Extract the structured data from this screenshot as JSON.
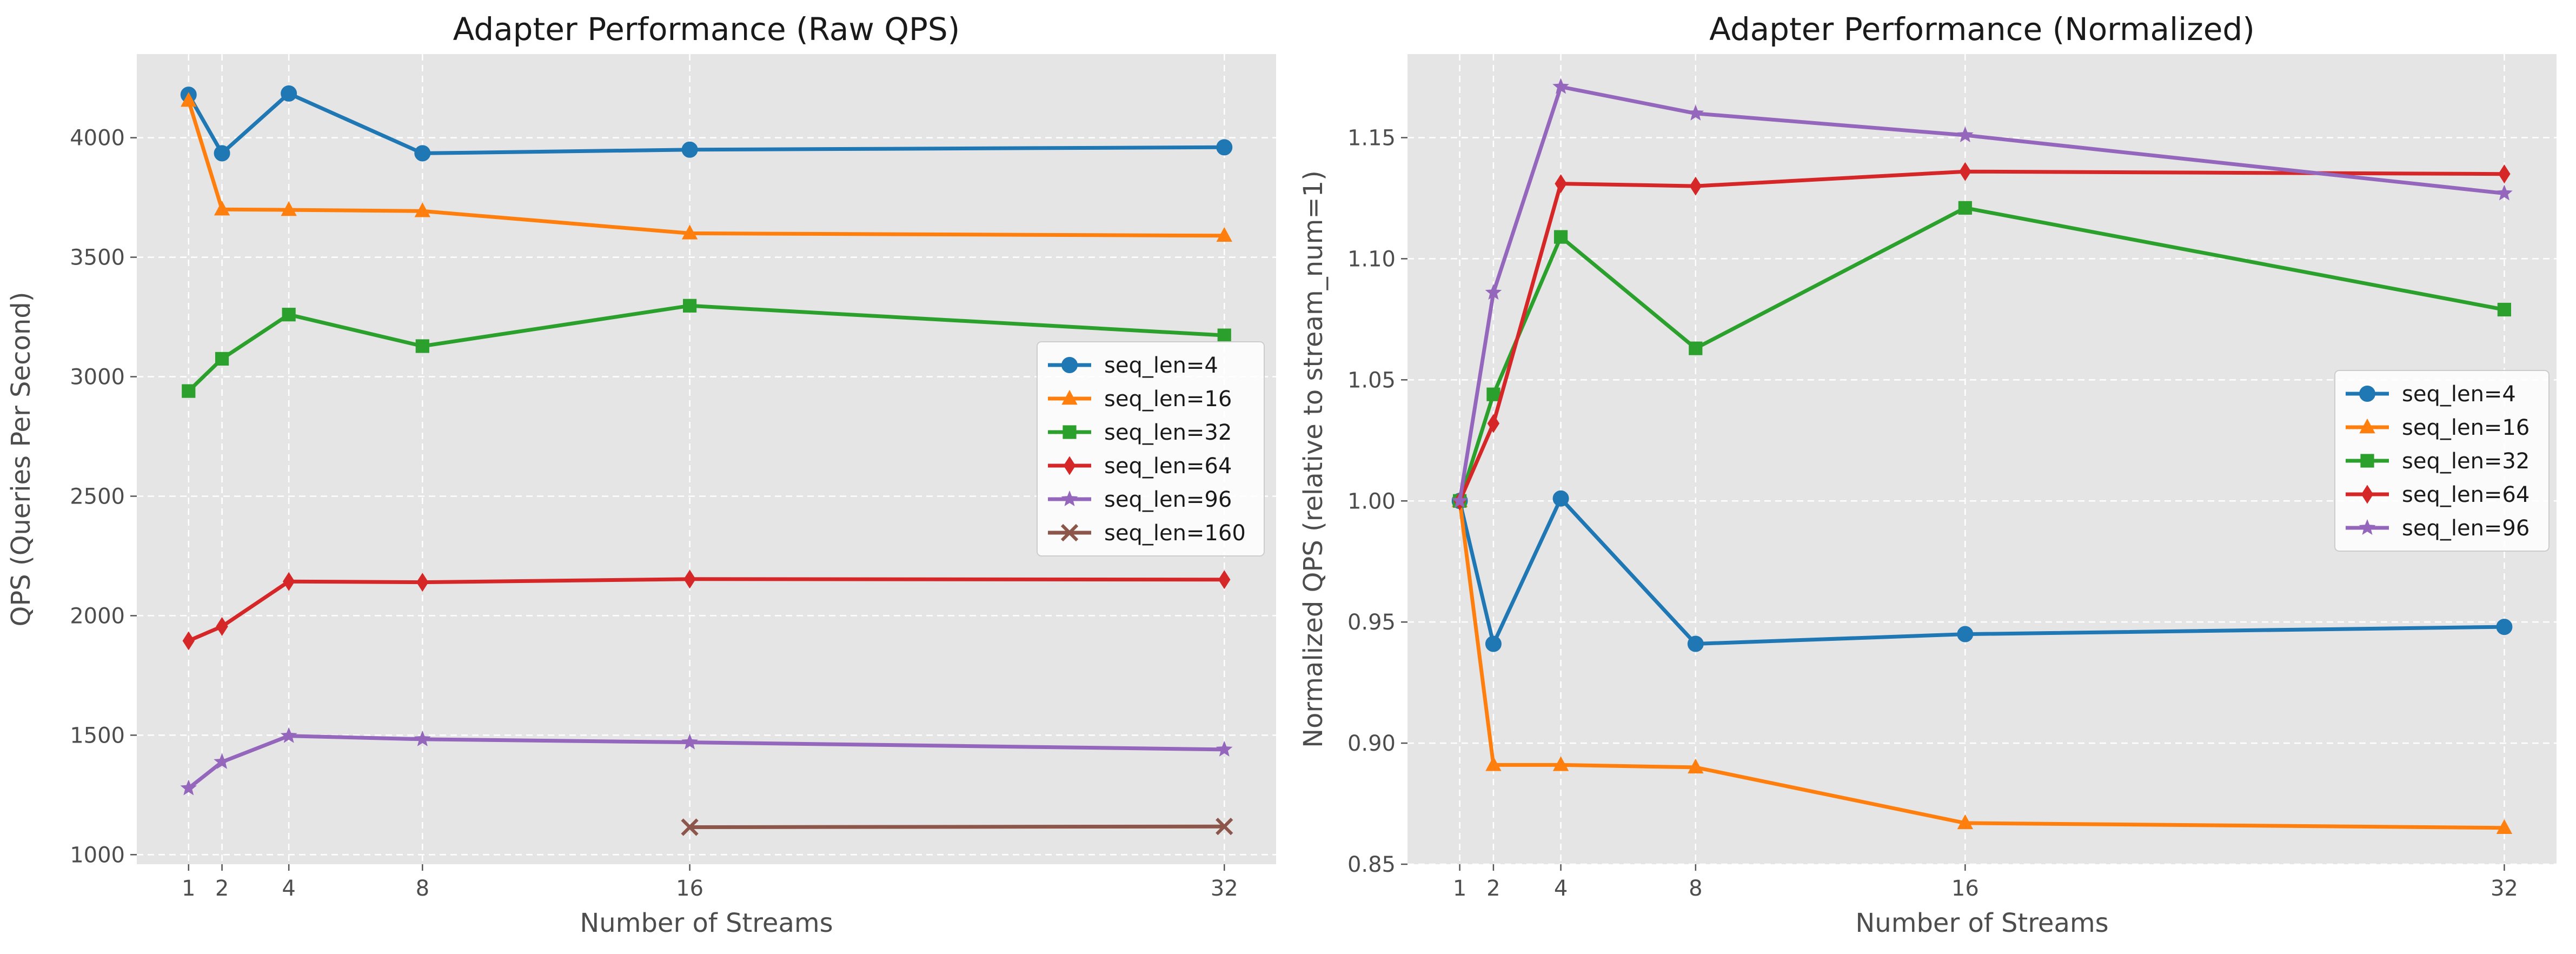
{
  "chart_data": [
    {
      "type": "line",
      "title": "Adapter Performance (Raw QPS)",
      "xlabel": "Number of Streams",
      "ylabel": "QPS (Queries Per Second)",
      "xticks": [
        1,
        2,
        4,
        8,
        16,
        32
      ],
      "yticks": [
        1000,
        1500,
        2000,
        2500,
        3000,
        3500,
        4000
      ],
      "xlim": [
        -0.55,
        33.55
      ],
      "ylim": [
        960,
        4350
      ],
      "grid": true,
      "legend_position": "center-right",
      "series": [
        {
          "name": "seq_len=4",
          "color": "#1f77b4",
          "marker": "circle",
          "x": [
            1,
            2,
            4,
            8,
            16,
            32
          ],
          "y": [
            4180,
            3935,
            4185,
            3935,
            3950,
            3960
          ]
        },
        {
          "name": "seq_len=16",
          "color": "#ff7f0e",
          "marker": "triangle",
          "x": [
            1,
            2,
            4,
            8,
            16,
            32
          ],
          "y": [
            4155,
            3700,
            3698,
            3693,
            3600,
            3590
          ]
        },
        {
          "name": "seq_len=32",
          "color": "#2ca02c",
          "marker": "square",
          "x": [
            1,
            2,
            4,
            8,
            16,
            32
          ],
          "y": [
            2940,
            3075,
            3260,
            3128,
            3297,
            3173
          ]
        },
        {
          "name": "seq_len=64",
          "color": "#d62728",
          "marker": "diamond",
          "x": [
            1,
            2,
            4,
            8,
            16,
            32
          ],
          "y": [
            1895,
            1955,
            2143,
            2140,
            2153,
            2151
          ]
        },
        {
          "name": "seq_len=96",
          "color": "#9467bd",
          "marker": "star",
          "x": [
            1,
            2,
            4,
            8,
            16,
            32
          ],
          "y": [
            1278,
            1388,
            1497,
            1483,
            1470,
            1440
          ]
        },
        {
          "name": "seq_len=160",
          "color": "#8c564b",
          "marker": "x",
          "x": [
            16,
            32
          ],
          "y": [
            1115,
            1118
          ]
        }
      ]
    },
    {
      "type": "line",
      "title": "Adapter Performance (Normalized)",
      "xlabel": "Number of Streams",
      "ylabel": "Normalized QPS (relative to stream_num=1)",
      "xticks": [
        1,
        2,
        4,
        8,
        16,
        32
      ],
      "yticks": [
        0.85,
        0.9,
        0.95,
        1.0,
        1.05,
        1.1,
        1.15
      ],
      "ytick_labels": [
        "0.85",
        "0.90",
        "0.95",
        "1.00",
        "1.05",
        "1.10",
        "1.15"
      ],
      "xlim": [
        -0.55,
        33.55
      ],
      "ylim": [
        0.85,
        1.1845
      ],
      "grid": true,
      "legend_position": "center-right",
      "series": [
        {
          "name": "seq_len=4",
          "color": "#1f77b4",
          "marker": "circle",
          "x": [
            1,
            2,
            4,
            8,
            16,
            32
          ],
          "y": [
            1.0,
            0.941,
            1.001,
            0.941,
            0.945,
            0.948
          ]
        },
        {
          "name": "seq_len=16",
          "color": "#ff7f0e",
          "marker": "triangle",
          "x": [
            1,
            2,
            4,
            8,
            16,
            32
          ],
          "y": [
            1.0,
            0.891,
            0.891,
            0.89,
            0.867,
            0.865
          ]
        },
        {
          "name": "seq_len=32",
          "color": "#2ca02c",
          "marker": "square",
          "x": [
            1,
            2,
            4,
            8,
            16,
            32
          ],
          "y": [
            1.0,
            1.044,
            1.109,
            1.063,
            1.121,
            1.079
          ]
        },
        {
          "name": "seq_len=64",
          "color": "#d62728",
          "marker": "diamond",
          "x": [
            1,
            2,
            4,
            8,
            16,
            32
          ],
          "y": [
            1.0,
            1.032,
            1.131,
            1.13,
            1.136,
            1.135
          ]
        },
        {
          "name": "seq_len=96",
          "color": "#9467bd",
          "marker": "star",
          "x": [
            1,
            2,
            4,
            8,
            16,
            32
          ],
          "y": [
            1.0,
            1.086,
            1.171,
            1.16,
            1.151,
            1.127
          ]
        }
      ]
    }
  ]
}
